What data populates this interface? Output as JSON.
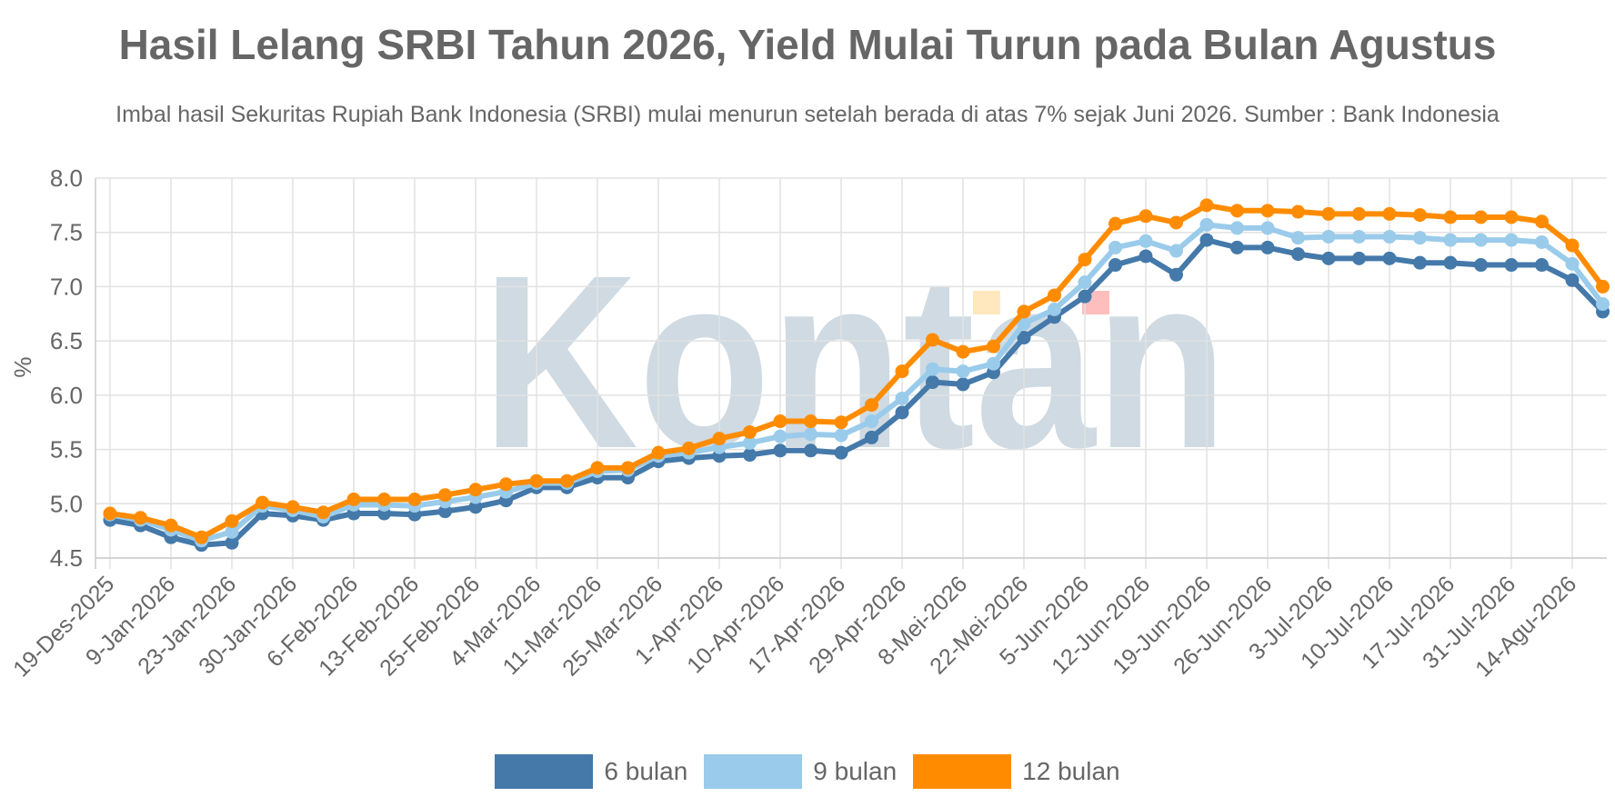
{
  "title": "Hasil Lelang SRBI Tahun 2026, Yield Mulai Turun pada Bulan Agustus",
  "subtitle": "Imbal hasil Sekuritas Rupiah Bank Indonesia (SRBI) mulai menurun setelah berada di atas 7% sejak Juni 2026. Sumber : Bank Indonesia",
  "watermark": "Kontan",
  "colors": {
    "six_month": "#4479aa",
    "nine_month": "#9acbea",
    "twelve_month": "#ff8c00",
    "grid": "#e2e2e2",
    "axis_text": "#666666"
  },
  "chart_data": {
    "type": "line",
    "ylabel": "%",
    "xlabel": "",
    "ylim": [
      4.5,
      8.0
    ],
    "yticks": [
      "8.0",
      "7.5",
      "7.0",
      "6.5",
      "6.0",
      "5.5",
      "5.0",
      "4.5"
    ],
    "grid": true,
    "legend_position": "bottom",
    "x_tick_labels": [
      "19-Des-2025",
      "9-Jan-2026",
      "23-Jan-2026",
      "30-Jan-2026",
      "6-Feb-2026",
      "13-Feb-2026",
      "25-Feb-2026",
      "4-Mar-2026",
      "11-Mar-2026",
      "25-Mar-2026",
      "1-Apr-2026",
      "10-Apr-2026",
      "17-Apr-2026",
      "29-Apr-2026",
      "8-Mei-2026",
      "22-Mei-2026",
      "5-Jun-2026",
      "12-Jun-2026",
      "19-Jun-2026",
      "26-Jun-2026",
      "3-Jul-2026",
      "10-Jul-2026",
      "17-Jul-2026",
      "31-Jul-2026",
      "14-Agu-2026"
    ],
    "series": [
      {
        "name": "6 bulan",
        "values": [
          4.85,
          4.8,
          4.69,
          4.62,
          4.64,
          4.91,
          4.89,
          4.85,
          4.91,
          4.91,
          4.9,
          4.93,
          4.97,
          5.03,
          5.15,
          5.15,
          5.24,
          5.24,
          5.39,
          5.42,
          5.44,
          5.45,
          5.49,
          5.49,
          5.47,
          5.61,
          5.84,
          6.12,
          6.1,
          6.21,
          6.53,
          6.72,
          6.91,
          7.2,
          7.28,
          7.11,
          7.43,
          7.36,
          7.36,
          7.3,
          7.26,
          7.26,
          7.26,
          7.22,
          7.22,
          7.2,
          7.2,
          7.2,
          7.06,
          6.77
        ]
      },
      {
        "name": "9 bulan",
        "values": [
          4.9,
          4.85,
          4.76,
          4.66,
          4.74,
          4.98,
          4.94,
          4.88,
          4.99,
          4.99,
          4.98,
          5.02,
          5.06,
          5.11,
          5.19,
          5.19,
          5.3,
          5.31,
          5.44,
          5.47,
          5.52,
          5.56,
          5.62,
          5.64,
          5.63,
          5.76,
          5.97,
          6.24,
          6.22,
          6.29,
          6.66,
          6.79,
          7.04,
          7.36,
          7.42,
          7.33,
          7.57,
          7.54,
          7.54,
          7.45,
          7.46,
          7.46,
          7.46,
          7.45,
          7.43,
          7.43,
          7.43,
          7.41,
          7.21,
          6.84
        ]
      },
      {
        "name": "12 bulan",
        "values": [
          4.91,
          4.87,
          4.8,
          4.69,
          4.84,
          5.01,
          4.97,
          4.92,
          5.04,
          5.04,
          5.04,
          5.08,
          5.13,
          5.18,
          5.21,
          5.21,
          5.33,
          5.33,
          5.47,
          5.51,
          5.6,
          5.66,
          5.76,
          5.76,
          5.75,
          5.91,
          6.22,
          6.51,
          6.4,
          6.45,
          6.77,
          6.92,
          7.25,
          7.58,
          7.65,
          7.59,
          7.75,
          7.7,
          7.7,
          7.69,
          7.67,
          7.67,
          7.67,
          7.66,
          7.64,
          7.64,
          7.64,
          7.6,
          7.38,
          7.0
        ]
      }
    ]
  }
}
